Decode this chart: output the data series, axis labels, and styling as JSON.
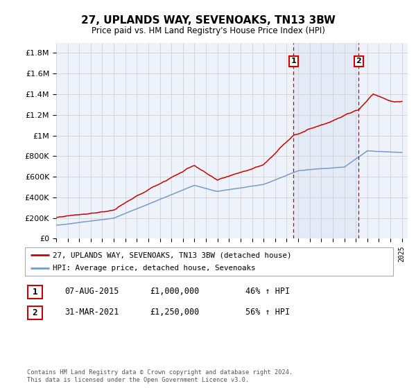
{
  "title": "27, UPLANDS WAY, SEVENOAKS, TN13 3BW",
  "subtitle": "Price paid vs. HM Land Registry's House Price Index (HPI)",
  "legend_line1": "27, UPLANDS WAY, SEVENOAKS, TN13 3BW (detached house)",
  "legend_line2": "HPI: Average price, detached house, Sevenoaks",
  "footnote": "Contains HM Land Registry data © Crown copyright and database right 2024.\nThis data is licensed under the Open Government Licence v3.0.",
  "sale1_date": "07-AUG-2015",
  "sale1_price": "£1,000,000",
  "sale1_hpi": "46% ↑ HPI",
  "sale1_year": 2015.6,
  "sale2_date": "31-MAR-2021",
  "sale2_price": "£1,250,000",
  "sale2_hpi": "56% ↑ HPI",
  "sale2_year": 2021.25,
  "ylim": [
    0,
    1900000
  ],
  "xlim": [
    1995,
    2025.5
  ],
  "property_color": "#cc0000",
  "hpi_color": "#7799cc",
  "vline_color": "#cc0000",
  "bg_color": "#eef2fa",
  "plot_bg": "#ffffff",
  "grid_color": "#cccccc"
}
